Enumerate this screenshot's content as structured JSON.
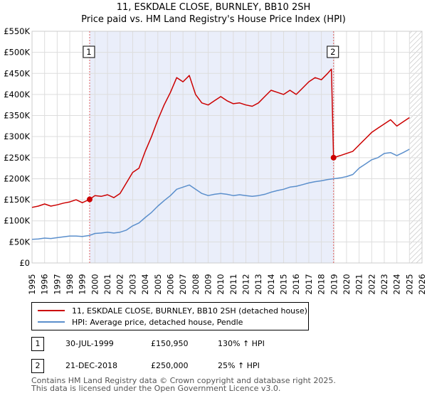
{
  "title_line1": "11, ESKDALE CLOSE, BURNLEY, BB10 2SH",
  "title_line2": "Price paid vs. HM Land Registry's House Price Index (HPI)",
  "chart_data": {
    "type": "line",
    "title": "Price paid vs. HM Land Registry's House Price Index (HPI)",
    "xlabel": "",
    "ylabel": "",
    "xlim": [
      1995,
      2026
    ],
    "ylim": [
      0,
      550000
    ],
    "x_ticks": [
      "1995",
      "1996",
      "1997",
      "1998",
      "1999",
      "2000",
      "2001",
      "2002",
      "2003",
      "2004",
      "2005",
      "2006",
      "2007",
      "2008",
      "2009",
      "2010",
      "2011",
      "2012",
      "2013",
      "2014",
      "2015",
      "2016",
      "2017",
      "2018",
      "2019",
      "2020",
      "2021",
      "2022",
      "2023",
      "2024",
      "2025",
      "2026"
    ],
    "y_ticks": [
      {
        "value": 0,
        "label": "£0"
      },
      {
        "value": 50000,
        "label": "£50K"
      },
      {
        "value": 100000,
        "label": "£100K"
      },
      {
        "value": 150000,
        "label": "£150K"
      },
      {
        "value": 200000,
        "label": "£200K"
      },
      {
        "value": 250000,
        "label": "£250K"
      },
      {
        "value": 300000,
        "label": "£300K"
      },
      {
        "value": 350000,
        "label": "£350K"
      },
      {
        "value": 400000,
        "label": "£400K"
      },
      {
        "value": 450000,
        "label": "£450K"
      },
      {
        "value": 500000,
        "label": "£500K"
      },
      {
        "value": 550000,
        "label": "£550K"
      }
    ],
    "shaded_region": {
      "from": 1999.58,
      "to": 2018.97
    },
    "future_hatch_from": 2025.0,
    "series": [
      {
        "name": "11, ESKDALE CLOSE, BURNLEY, BB10 2SH (detached house)",
        "color": "#cc0000",
        "points": [
          [
            1995.0,
            132000
          ],
          [
            1995.5,
            135000
          ],
          [
            1996.0,
            140000
          ],
          [
            1996.5,
            135000
          ],
          [
            1997.0,
            138000
          ],
          [
            1997.5,
            142000
          ],
          [
            1998.0,
            145000
          ],
          [
            1998.5,
            150000
          ],
          [
            1999.0,
            143000
          ],
          [
            1999.58,
            150950
          ],
          [
            2000.0,
            160000
          ],
          [
            2000.5,
            158000
          ],
          [
            2001.0,
            162000
          ],
          [
            2001.5,
            155000
          ],
          [
            2002.0,
            165000
          ],
          [
            2002.5,
            190000
          ],
          [
            2003.0,
            215000
          ],
          [
            2003.5,
            225000
          ],
          [
            2004.0,
            265000
          ],
          [
            2004.5,
            300000
          ],
          [
            2005.0,
            340000
          ],
          [
            2005.5,
            375000
          ],
          [
            2006.0,
            405000
          ],
          [
            2006.5,
            440000
          ],
          [
            2007.0,
            430000
          ],
          [
            2007.5,
            445000
          ],
          [
            2008.0,
            400000
          ],
          [
            2008.5,
            380000
          ],
          [
            2009.0,
            375000
          ],
          [
            2009.5,
            385000
          ],
          [
            2010.0,
            395000
          ],
          [
            2010.5,
            385000
          ],
          [
            2011.0,
            378000
          ],
          [
            2011.5,
            380000
          ],
          [
            2012.0,
            375000
          ],
          [
            2012.5,
            372000
          ],
          [
            2013.0,
            380000
          ],
          [
            2013.5,
            395000
          ],
          [
            2014.0,
            410000
          ],
          [
            2014.5,
            405000
          ],
          [
            2015.0,
            400000
          ],
          [
            2015.5,
            410000
          ],
          [
            2016.0,
            400000
          ],
          [
            2016.5,
            415000
          ],
          [
            2017.0,
            430000
          ],
          [
            2017.5,
            440000
          ],
          [
            2018.0,
            435000
          ],
          [
            2018.5,
            450000
          ],
          [
            2018.8,
            460000
          ],
          [
            2018.97,
            250000
          ],
          [
            2019.5,
            255000
          ],
          [
            2020.0,
            260000
          ],
          [
            2020.5,
            265000
          ],
          [
            2021.0,
            280000
          ],
          [
            2021.5,
            295000
          ],
          [
            2022.0,
            310000
          ],
          [
            2022.5,
            320000
          ],
          [
            2023.0,
            330000
          ],
          [
            2023.5,
            340000
          ],
          [
            2024.0,
            325000
          ],
          [
            2024.5,
            335000
          ],
          [
            2025.0,
            345000
          ]
        ]
      },
      {
        "name": "HPI: Average price, detached house, Pendle",
        "color": "#5b8fcc",
        "points": [
          [
            1995.0,
            56000
          ],
          [
            1995.5,
            57000
          ],
          [
            1996.0,
            59000
          ],
          [
            1996.5,
            58000
          ],
          [
            1997.0,
            60000
          ],
          [
            1997.5,
            62000
          ],
          [
            1998.0,
            64000
          ],
          [
            1998.5,
            64000
          ],
          [
            1999.0,
            63000
          ],
          [
            1999.58,
            65500
          ],
          [
            2000.0,
            70000
          ],
          [
            2000.5,
            71000
          ],
          [
            2001.0,
            73000
          ],
          [
            2001.5,
            71000
          ],
          [
            2002.0,
            73000
          ],
          [
            2002.5,
            78000
          ],
          [
            2003.0,
            88000
          ],
          [
            2003.5,
            95000
          ],
          [
            2004.0,
            108000
          ],
          [
            2004.5,
            120000
          ],
          [
            2005.0,
            135000
          ],
          [
            2005.5,
            148000
          ],
          [
            2006.0,
            160000
          ],
          [
            2006.5,
            175000
          ],
          [
            2007.0,
            180000
          ],
          [
            2007.5,
            185000
          ],
          [
            2008.0,
            175000
          ],
          [
            2008.5,
            165000
          ],
          [
            2009.0,
            160000
          ],
          [
            2009.5,
            163000
          ],
          [
            2010.0,
            165000
          ],
          [
            2010.5,
            163000
          ],
          [
            2011.0,
            160000
          ],
          [
            2011.5,
            162000
          ],
          [
            2012.0,
            160000
          ],
          [
            2012.5,
            158000
          ],
          [
            2013.0,
            160000
          ],
          [
            2013.5,
            163000
          ],
          [
            2014.0,
            168000
          ],
          [
            2014.5,
            172000
          ],
          [
            2015.0,
            175000
          ],
          [
            2015.5,
            180000
          ],
          [
            2016.0,
            182000
          ],
          [
            2016.5,
            186000
          ],
          [
            2017.0,
            190000
          ],
          [
            2017.5,
            193000
          ],
          [
            2018.0,
            195000
          ],
          [
            2018.5,
            198000
          ],
          [
            2018.97,
            200000
          ],
          [
            2019.5,
            202000
          ],
          [
            2020.0,
            205000
          ],
          [
            2020.5,
            210000
          ],
          [
            2021.0,
            225000
          ],
          [
            2021.5,
            235000
          ],
          [
            2022.0,
            245000
          ],
          [
            2022.5,
            250000
          ],
          [
            2023.0,
            260000
          ],
          [
            2023.5,
            262000
          ],
          [
            2024.0,
            255000
          ],
          [
            2024.5,
            262000
          ],
          [
            2025.0,
            270000
          ]
        ]
      }
    ],
    "markers": [
      {
        "label": "1",
        "x": 1999.58,
        "y": 150950
      },
      {
        "label": "2",
        "x": 2018.97,
        "y": 250000
      }
    ]
  },
  "legend": [
    {
      "label": "11, ESKDALE CLOSE, BURNLEY, BB10 2SH (detached house)",
      "color": "#cc0000"
    },
    {
      "label": "HPI: Average price, detached house, Pendle",
      "color": "#5b8fcc"
    }
  ],
  "transactions": [
    {
      "num": "1",
      "date": "30-JUL-1999",
      "price": "£150,950",
      "hpi": "130% ↑ HPI"
    },
    {
      "num": "2",
      "date": "21-DEC-2018",
      "price": "£250,000",
      "hpi": "25% ↑ HPI"
    }
  ],
  "footer_line1": "Contains HM Land Registry data © Crown copyright and database right 2025.",
  "footer_line2": "This data is licensed under the Open Government Licence v3.0."
}
